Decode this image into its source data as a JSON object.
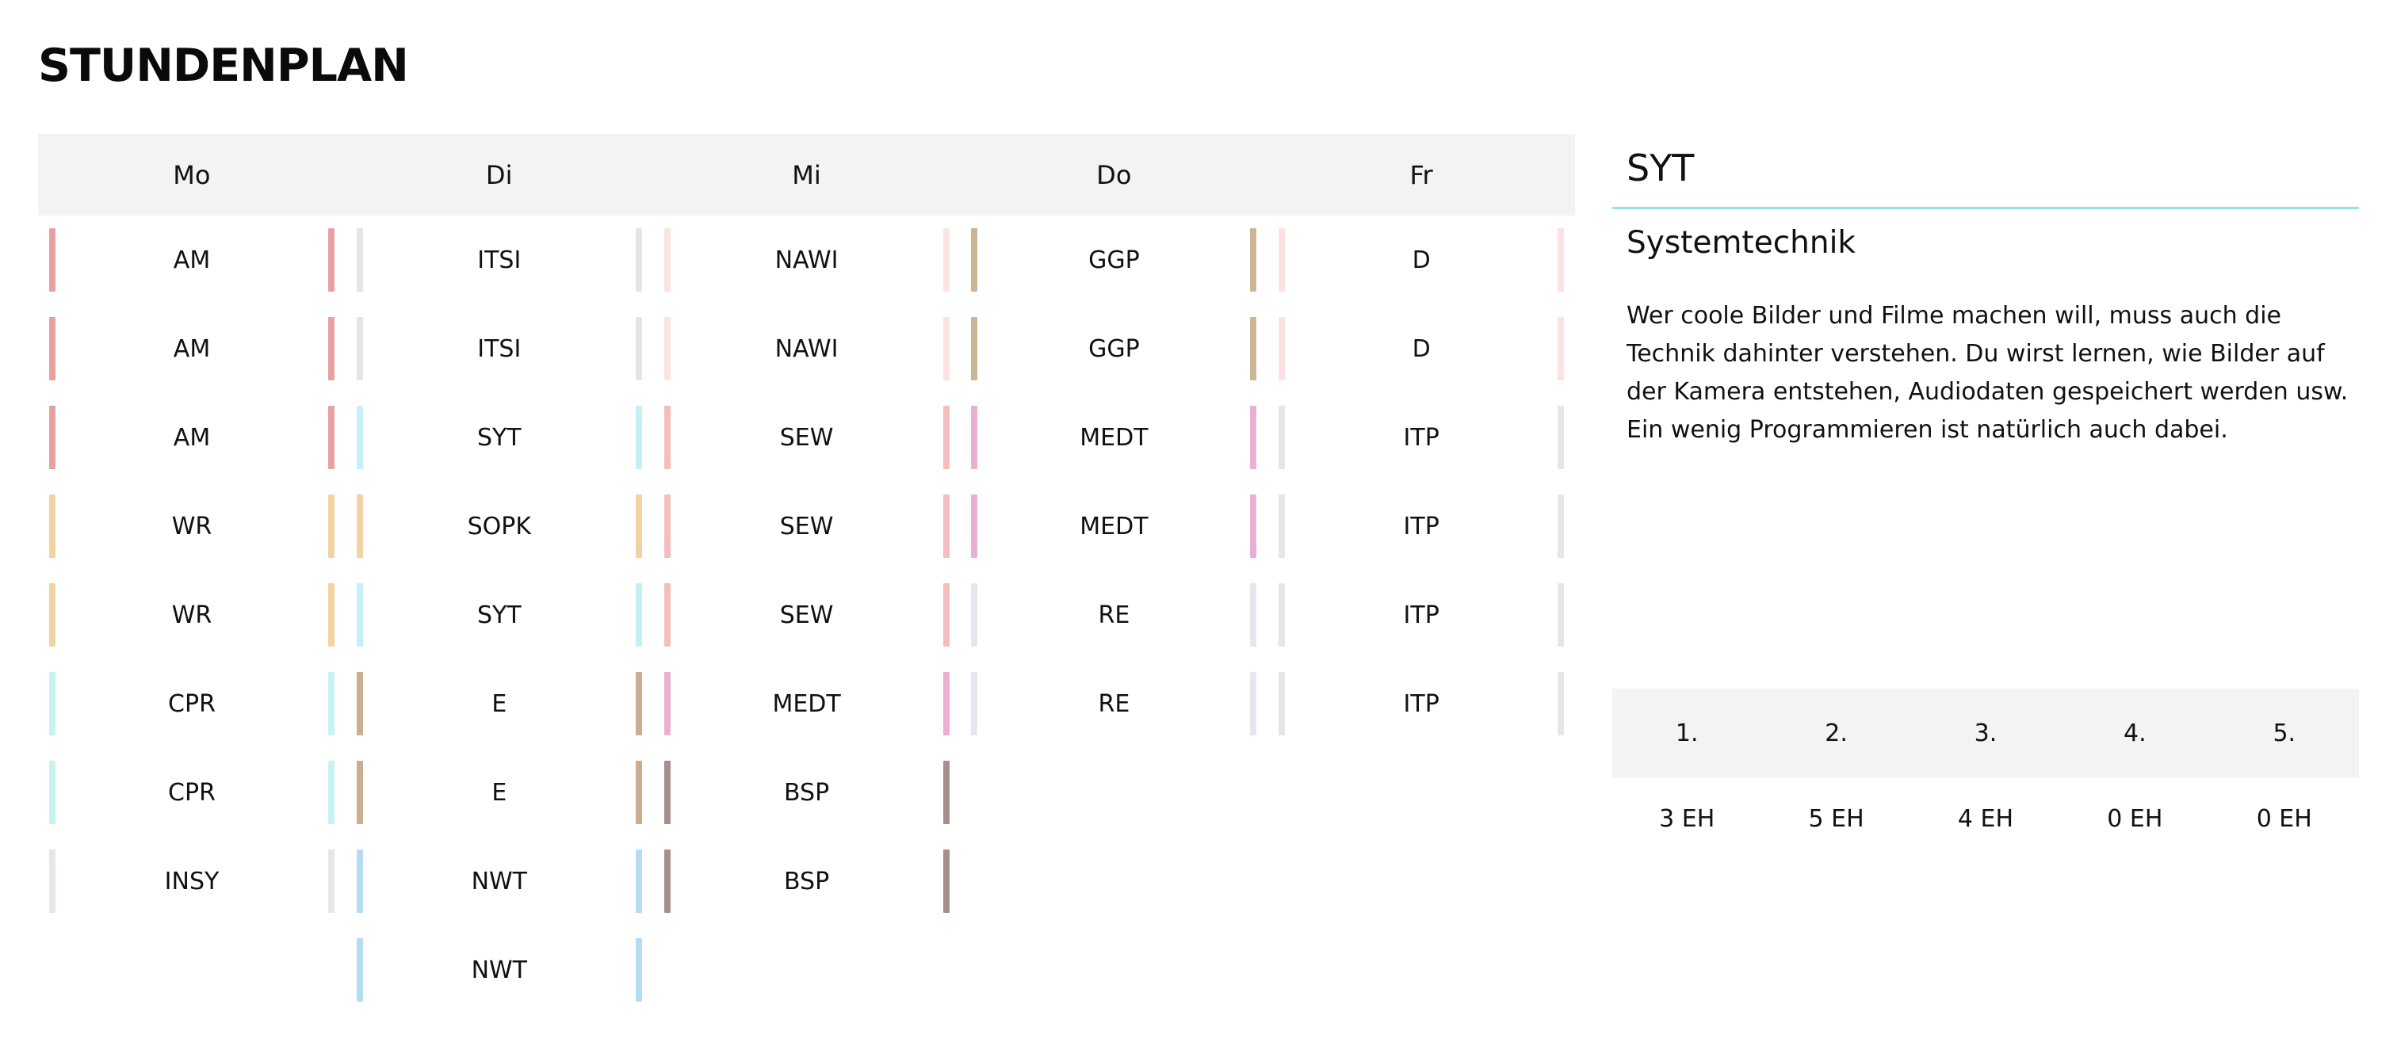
{
  "page": {
    "title": "STUNDENPLAN"
  },
  "colors": {
    "AM": "#e7a1a1",
    "WR": "#f3d3a2",
    "CPR": "#c8f3f3",
    "INSY": "#e6e6ec",
    "ITSI": "#e5e5e8",
    "SYT": "#c6f0f6",
    "SOPK": "#f3d3a2",
    "E": "#cbad90",
    "NWT": "#b4dcf4",
    "NAWI": "#fbe3e4",
    "SEW": "#f3bebe",
    "MEDT": "#eaafd2",
    "BSP": "#a88e8c",
    "GGP": "#cdb494",
    "RE": "#e7e6ee",
    "D": "#fce2e3",
    "ITP": "#e6e6e8",
    "accent": "#8fe3ea",
    "header_bg": "#f3f3f3"
  },
  "timetable": {
    "days": [
      {
        "label": "Mo",
        "lessons": [
          {
            "subject": "AM"
          },
          {
            "subject": "AM"
          },
          {
            "subject": "AM"
          },
          {
            "subject": "WR"
          },
          {
            "subject": "WR"
          },
          {
            "subject": "CPR"
          },
          {
            "subject": "CPR"
          },
          {
            "subject": "INSY"
          }
        ]
      },
      {
        "label": "Di",
        "lessons": [
          {
            "subject": "ITSI"
          },
          {
            "subject": "ITSI"
          },
          {
            "subject": "SYT"
          },
          {
            "subject": "SOPK"
          },
          {
            "subject": "SYT"
          },
          {
            "subject": "E"
          },
          {
            "subject": "E"
          },
          {
            "subject": "NWT"
          },
          {
            "subject": "NWT"
          }
        ]
      },
      {
        "label": "Mi",
        "lessons": [
          {
            "subject": "NAWI"
          },
          {
            "subject": "NAWI"
          },
          {
            "subject": "SEW"
          },
          {
            "subject": "SEW"
          },
          {
            "subject": "SEW"
          },
          {
            "subject": "MEDT"
          },
          {
            "subject": "BSP"
          },
          {
            "subject": "BSP"
          }
        ]
      },
      {
        "label": "Do",
        "lessons": [
          {
            "subject": "GGP"
          },
          {
            "subject": "GGP"
          },
          {
            "subject": "MEDT"
          },
          {
            "subject": "MEDT"
          },
          {
            "subject": "RE"
          },
          {
            "subject": "RE"
          }
        ]
      },
      {
        "label": "Fr",
        "lessons": [
          {
            "subject": "D"
          },
          {
            "subject": "D"
          },
          {
            "subject": "ITP"
          },
          {
            "subject": "ITP"
          },
          {
            "subject": "ITP"
          },
          {
            "subject": "ITP"
          }
        ]
      }
    ]
  },
  "detail": {
    "code": "SYT",
    "name": "Systemtechnik",
    "description": "Wer coole Bilder und Filme machen will, muss auch die Technik dahinter verstehen. Du wirst lernen, wie Bilder auf der Kamera entstehen, Audiodaten gespeichert werden usw. Ein wenig Programmieren ist natürlich auch dabei.",
    "hours": {
      "years": [
        "1.",
        "2.",
        "3.",
        "4.",
        "5."
      ],
      "values": [
        "3 EH",
        "5 EH",
        "4 EH",
        "0 EH",
        "0 EH"
      ]
    }
  }
}
